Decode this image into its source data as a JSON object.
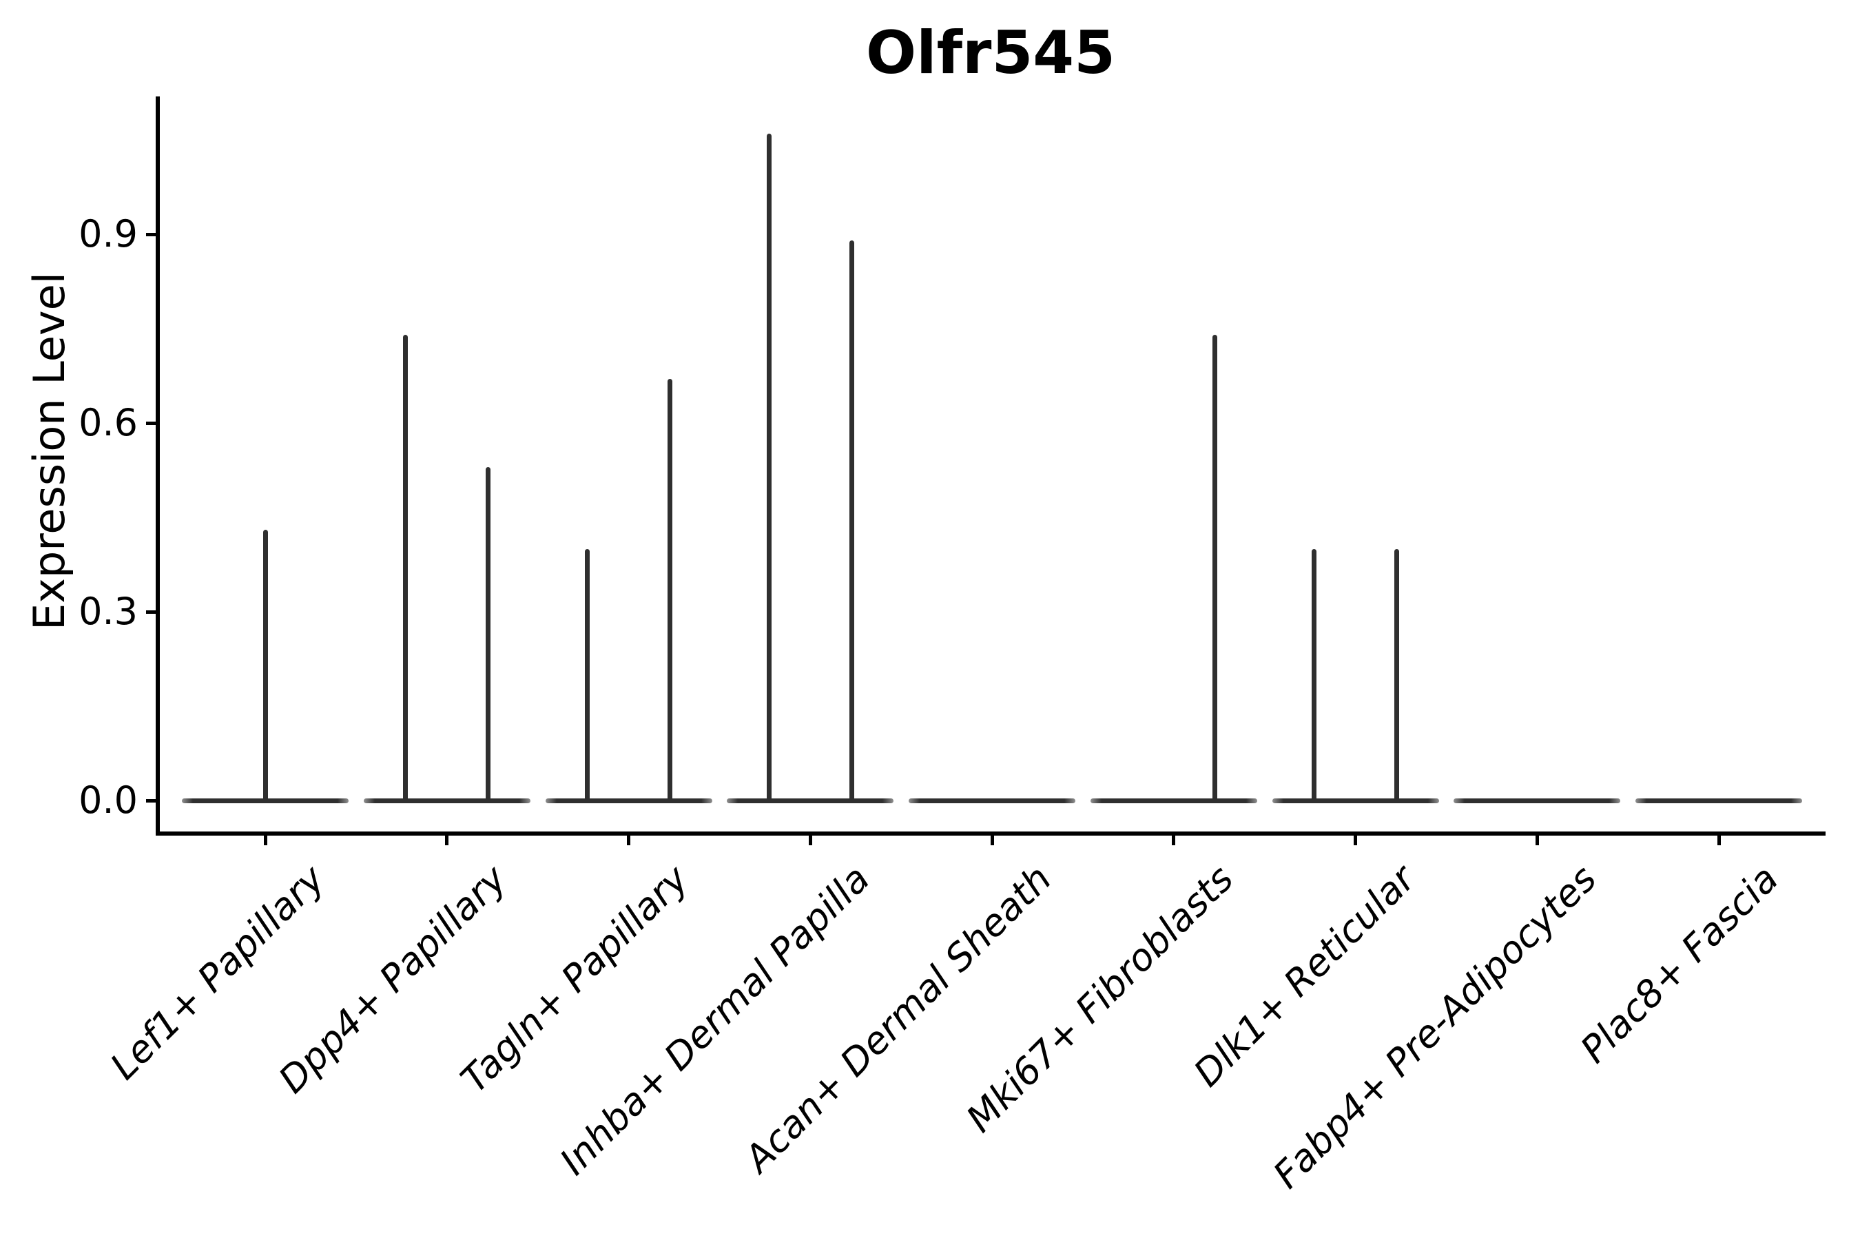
{
  "title": "Olfr545",
  "y_axis": {
    "label": "Expression Level",
    "ticks": [
      {
        "label": "0.0",
        "value": 0.0
      },
      {
        "label": "0.3",
        "value": 0.3
      },
      {
        "label": "0.6",
        "value": 0.6
      },
      {
        "label": "0.9",
        "value": 0.9
      }
    ]
  },
  "colors": {
    "background": "#ffffff",
    "axis": "#000000",
    "text": "#000000",
    "violin": "#2f2f2f",
    "violin_tip": "#909090"
  },
  "chart_data": {
    "type": "violin",
    "title": "Olfr545",
    "xlabel": "",
    "ylabel": "Expression Level",
    "ylim": [
      -0.06,
      1.12
    ],
    "yticks": [
      0.0,
      0.3,
      0.6,
      0.9
    ],
    "grid": false,
    "legend": null,
    "categories": [
      "Lef1+ Papillary",
      "Dpp4+ Papillary",
      "Tagln+ Papillary",
      "Inhba+ Dermal Papilla",
      "Acan+ Dermal Sheath",
      "Mki67+ Fibroblasts",
      "Dlk1+ Reticular",
      "Fabp4+ Pre-Adipocytes",
      "Plac8+ Fascia"
    ],
    "violins": [
      {
        "category": "Lef1+ Papillary",
        "baseline": 0.0,
        "spikes": [
          {
            "side": "center",
            "value": 0.43
          }
        ]
      },
      {
        "category": "Dpp4+ Papillary",
        "baseline": 0.0,
        "spikes": [
          {
            "side": "left",
            "value": 0.74
          },
          {
            "side": "right",
            "value": 0.53
          }
        ]
      },
      {
        "category": "Tagln+ Papillary",
        "baseline": 0.0,
        "spikes": [
          {
            "side": "left",
            "value": 0.4
          },
          {
            "side": "right",
            "value": 0.67
          }
        ]
      },
      {
        "category": "Inhba+ Dermal Papilla",
        "baseline": 0.0,
        "spikes": [
          {
            "side": "left",
            "value": 1.06
          },
          {
            "side": "right",
            "value": 0.89
          }
        ]
      },
      {
        "category": "Acan+ Dermal Sheath",
        "baseline": 0.0,
        "spikes": []
      },
      {
        "category": "Mki67+ Fibroblasts",
        "baseline": 0.0,
        "spikes": [
          {
            "side": "right",
            "value": 0.74
          }
        ]
      },
      {
        "category": "Dlk1+ Reticular",
        "baseline": 0.0,
        "spikes": [
          {
            "side": "left",
            "value": 0.4
          },
          {
            "side": "right",
            "value": 0.4
          }
        ]
      },
      {
        "category": "Fabp4+ Pre-Adipocytes",
        "baseline": 0.0,
        "spikes": []
      },
      {
        "category": "Plac8+ Fascia",
        "baseline": 0.0,
        "spikes": []
      }
    ],
    "description": "Violin plot of Olfr545 expression per fibroblast cluster; each distribution is concentrated at 0 with thin density spikes reaching the few expressing cells."
  }
}
